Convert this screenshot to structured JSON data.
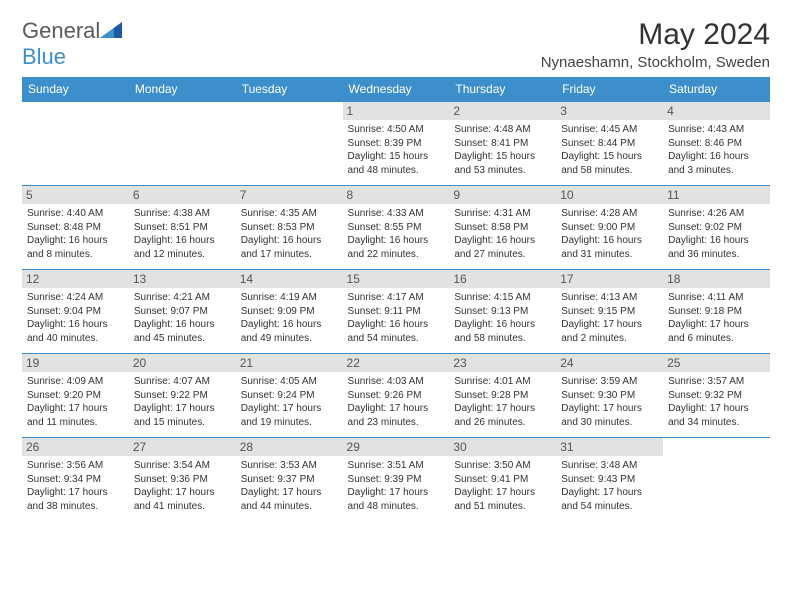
{
  "logo": {
    "text1": "General",
    "text2": "Blue"
  },
  "title": "May 2024",
  "subtitle": "Nynaeshamn, Stockholm, Sweden",
  "header_bg": "#3d8fcc",
  "header_fg": "#ffffff",
  "border_color": "#3d8fcc",
  "daynum_bg": "#e2e2e2",
  "daynum_fg": "#555555",
  "text_color": "#333333",
  "font_size_body": 10,
  "font_size_daynum": 12,
  "font_size_header": 12,
  "font_size_title": 30,
  "font_size_subtitle": 15,
  "weekdays": [
    "Sunday",
    "Monday",
    "Tuesday",
    "Wednesday",
    "Thursday",
    "Friday",
    "Saturday"
  ],
  "weeks": [
    [
      {
        "day": "",
        "sunrise": "",
        "sunset": "",
        "daylight": ""
      },
      {
        "day": "",
        "sunrise": "",
        "sunset": "",
        "daylight": ""
      },
      {
        "day": "",
        "sunrise": "",
        "sunset": "",
        "daylight": ""
      },
      {
        "day": "1",
        "sunrise": "Sunrise: 4:50 AM",
        "sunset": "Sunset: 8:39 PM",
        "daylight": "Daylight: 15 hours and 48 minutes."
      },
      {
        "day": "2",
        "sunrise": "Sunrise: 4:48 AM",
        "sunset": "Sunset: 8:41 PM",
        "daylight": "Daylight: 15 hours and 53 minutes."
      },
      {
        "day": "3",
        "sunrise": "Sunrise: 4:45 AM",
        "sunset": "Sunset: 8:44 PM",
        "daylight": "Daylight: 15 hours and 58 minutes."
      },
      {
        "day": "4",
        "sunrise": "Sunrise: 4:43 AM",
        "sunset": "Sunset: 8:46 PM",
        "daylight": "Daylight: 16 hours and 3 minutes."
      }
    ],
    [
      {
        "day": "5",
        "sunrise": "Sunrise: 4:40 AM",
        "sunset": "Sunset: 8:48 PM",
        "daylight": "Daylight: 16 hours and 8 minutes."
      },
      {
        "day": "6",
        "sunrise": "Sunrise: 4:38 AM",
        "sunset": "Sunset: 8:51 PM",
        "daylight": "Daylight: 16 hours and 12 minutes."
      },
      {
        "day": "7",
        "sunrise": "Sunrise: 4:35 AM",
        "sunset": "Sunset: 8:53 PM",
        "daylight": "Daylight: 16 hours and 17 minutes."
      },
      {
        "day": "8",
        "sunrise": "Sunrise: 4:33 AM",
        "sunset": "Sunset: 8:55 PM",
        "daylight": "Daylight: 16 hours and 22 minutes."
      },
      {
        "day": "9",
        "sunrise": "Sunrise: 4:31 AM",
        "sunset": "Sunset: 8:58 PM",
        "daylight": "Daylight: 16 hours and 27 minutes."
      },
      {
        "day": "10",
        "sunrise": "Sunrise: 4:28 AM",
        "sunset": "Sunset: 9:00 PM",
        "daylight": "Daylight: 16 hours and 31 minutes."
      },
      {
        "day": "11",
        "sunrise": "Sunrise: 4:26 AM",
        "sunset": "Sunset: 9:02 PM",
        "daylight": "Daylight: 16 hours and 36 minutes."
      }
    ],
    [
      {
        "day": "12",
        "sunrise": "Sunrise: 4:24 AM",
        "sunset": "Sunset: 9:04 PM",
        "daylight": "Daylight: 16 hours and 40 minutes."
      },
      {
        "day": "13",
        "sunrise": "Sunrise: 4:21 AM",
        "sunset": "Sunset: 9:07 PM",
        "daylight": "Daylight: 16 hours and 45 minutes."
      },
      {
        "day": "14",
        "sunrise": "Sunrise: 4:19 AM",
        "sunset": "Sunset: 9:09 PM",
        "daylight": "Daylight: 16 hours and 49 minutes."
      },
      {
        "day": "15",
        "sunrise": "Sunrise: 4:17 AM",
        "sunset": "Sunset: 9:11 PM",
        "daylight": "Daylight: 16 hours and 54 minutes."
      },
      {
        "day": "16",
        "sunrise": "Sunrise: 4:15 AM",
        "sunset": "Sunset: 9:13 PM",
        "daylight": "Daylight: 16 hours and 58 minutes."
      },
      {
        "day": "17",
        "sunrise": "Sunrise: 4:13 AM",
        "sunset": "Sunset: 9:15 PM",
        "daylight": "Daylight: 17 hours and 2 minutes."
      },
      {
        "day": "18",
        "sunrise": "Sunrise: 4:11 AM",
        "sunset": "Sunset: 9:18 PM",
        "daylight": "Daylight: 17 hours and 6 minutes."
      }
    ],
    [
      {
        "day": "19",
        "sunrise": "Sunrise: 4:09 AM",
        "sunset": "Sunset: 9:20 PM",
        "daylight": "Daylight: 17 hours and 11 minutes."
      },
      {
        "day": "20",
        "sunrise": "Sunrise: 4:07 AM",
        "sunset": "Sunset: 9:22 PM",
        "daylight": "Daylight: 17 hours and 15 minutes."
      },
      {
        "day": "21",
        "sunrise": "Sunrise: 4:05 AM",
        "sunset": "Sunset: 9:24 PM",
        "daylight": "Daylight: 17 hours and 19 minutes."
      },
      {
        "day": "22",
        "sunrise": "Sunrise: 4:03 AM",
        "sunset": "Sunset: 9:26 PM",
        "daylight": "Daylight: 17 hours and 23 minutes."
      },
      {
        "day": "23",
        "sunrise": "Sunrise: 4:01 AM",
        "sunset": "Sunset: 9:28 PM",
        "daylight": "Daylight: 17 hours and 26 minutes."
      },
      {
        "day": "24",
        "sunrise": "Sunrise: 3:59 AM",
        "sunset": "Sunset: 9:30 PM",
        "daylight": "Daylight: 17 hours and 30 minutes."
      },
      {
        "day": "25",
        "sunrise": "Sunrise: 3:57 AM",
        "sunset": "Sunset: 9:32 PM",
        "daylight": "Daylight: 17 hours and 34 minutes."
      }
    ],
    [
      {
        "day": "26",
        "sunrise": "Sunrise: 3:56 AM",
        "sunset": "Sunset: 9:34 PM",
        "daylight": "Daylight: 17 hours and 38 minutes."
      },
      {
        "day": "27",
        "sunrise": "Sunrise: 3:54 AM",
        "sunset": "Sunset: 9:36 PM",
        "daylight": "Daylight: 17 hours and 41 minutes."
      },
      {
        "day": "28",
        "sunrise": "Sunrise: 3:53 AM",
        "sunset": "Sunset: 9:37 PM",
        "daylight": "Daylight: 17 hours and 44 minutes."
      },
      {
        "day": "29",
        "sunrise": "Sunrise: 3:51 AM",
        "sunset": "Sunset: 9:39 PM",
        "daylight": "Daylight: 17 hours and 48 minutes."
      },
      {
        "day": "30",
        "sunrise": "Sunrise: 3:50 AM",
        "sunset": "Sunset: 9:41 PM",
        "daylight": "Daylight: 17 hours and 51 minutes."
      },
      {
        "day": "31",
        "sunrise": "Sunrise: 3:48 AM",
        "sunset": "Sunset: 9:43 PM",
        "daylight": "Daylight: 17 hours and 54 minutes."
      },
      {
        "day": "",
        "sunrise": "",
        "sunset": "",
        "daylight": ""
      }
    ]
  ]
}
